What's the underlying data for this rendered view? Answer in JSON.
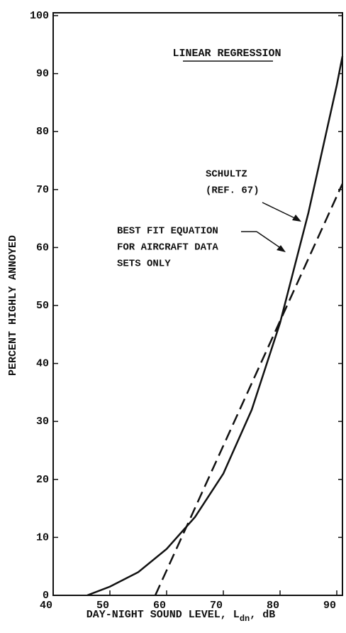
{
  "chart_data": {
    "type": "line",
    "title": "LINEAR REGRESSION",
    "xlabel": {
      "text": "DAY-NIGHT SOUND LEVEL, L",
      "subscript": "dn",
      "suffix": ", dB"
    },
    "ylabel": "PERCENT HIGHLY ANNOYED",
    "xlim": [
      40,
      91
    ],
    "ylim": [
      0,
      100
    ],
    "xticks": [
      40,
      50,
      60,
      70,
      80,
      90
    ],
    "yticks": [
      0,
      10,
      20,
      30,
      40,
      50,
      60,
      70,
      80,
      90,
      100
    ],
    "series": [
      {
        "name": "SCHULTZ (REF. 67)",
        "color": "#111111",
        "dash": false,
        "x": [
          46,
          50,
          55,
          60,
          65,
          70,
          75,
          80,
          85,
          90,
          91
        ],
        "values": [
          0,
          1.5,
          4,
          8,
          13.5,
          21,
          32,
          47,
          66,
          88,
          93
        ]
      },
      {
        "name": "BEST FIT EQUATION FOR AIRCRAFT DATA SETS ONLY",
        "color": "#111111",
        "dash": true,
        "x": [
          58,
          91
        ],
        "values": [
          0,
          71
        ]
      }
    ],
    "annotations": [
      {
        "lines": [
          "SCHULTZ",
          "(REF. 67)"
        ]
      },
      {
        "lines": [
          "BEST FIT EQUATION",
          "FOR AIRCRAFT DATA",
          "SETS ONLY"
        ]
      }
    ]
  }
}
